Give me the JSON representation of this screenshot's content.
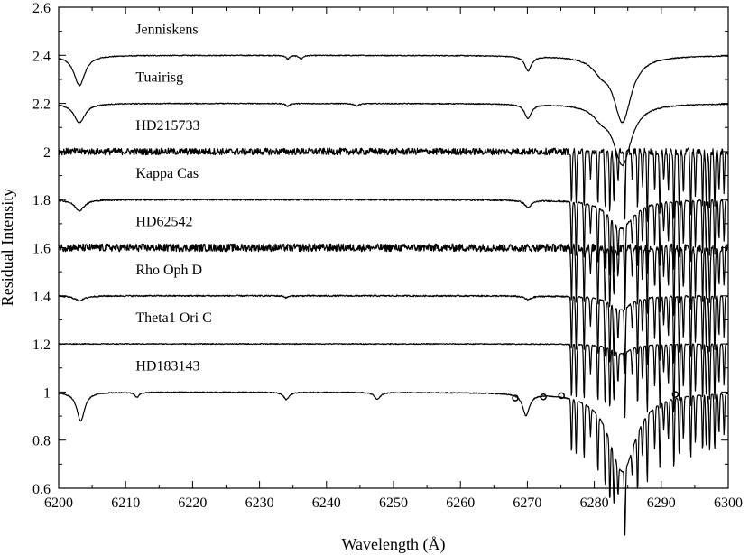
{
  "chart_data": {
    "type": "line",
    "xlabel": "Wavelength (Å)",
    "ylabel": "Residual Intensity",
    "xlim": [
      6200,
      6300
    ],
    "ylim": [
      0.6,
      2.6
    ],
    "xticks": [
      6200,
      6210,
      6220,
      6230,
      6240,
      6250,
      6260,
      6270,
      6280,
      6290,
      6300
    ],
    "xtick_labels": [
      "6200",
      "6210",
      "6220",
      "6230",
      "6240",
      "6250",
      "6260",
      "6270",
      "6280",
      "6290",
      "6300"
    ],
    "yticks": [
      0.6,
      0.8,
      1.0,
      1.2,
      1.4,
      1.6,
      1.8,
      2.0,
      2.2,
      2.4,
      2.6
    ],
    "ytick_labels": [
      "0.6",
      "0.8",
      "1",
      "1.2",
      "1.4",
      "1.6",
      "1.8",
      "2",
      "2.2",
      "2.4",
      "2.6"
    ],
    "grid": false,
    "legend": "none",
    "series": [
      {
        "name": "Jenniskens",
        "continuum": 2.4,
        "noise": 0.002,
        "telluric": false,
        "label_y": 2.49,
        "dips": [
          [
            6203.1,
            0.125,
            1.0
          ],
          [
            6234.2,
            0.015,
            0.3
          ],
          [
            6236.2,
            0.015,
            0.3
          ],
          [
            6270.1,
            0.06,
            0.6
          ],
          [
            6281.0,
            0.045,
            1.5
          ],
          [
            6284.2,
            0.27,
            1.6
          ]
        ]
      },
      {
        "name": "Tuairisg",
        "continuum": 2.2,
        "noise": 0.002,
        "telluric": false,
        "label_y": 2.29,
        "dips": [
          [
            6203.1,
            0.08,
            1.0
          ],
          [
            6234.2,
            0.012,
            0.3
          ],
          [
            6244.5,
            0.01,
            0.4
          ],
          [
            6270.1,
            0.06,
            0.6
          ],
          [
            6281.0,
            0.04,
            1.5
          ],
          [
            6284.2,
            0.25,
            1.6
          ]
        ]
      },
      {
        "name": "HD215733",
        "continuum": 2.0,
        "noise": 0.014,
        "telluric": true,
        "label_y": 2.09,
        "dips": []
      },
      {
        "name": "Kappa Cas",
        "continuum": 1.8,
        "noise": 0.003,
        "telluric": true,
        "label_y": 1.89,
        "dips": [
          [
            6203.1,
            0.045,
            0.9
          ],
          [
            6270.1,
            0.03,
            0.6
          ],
          [
            6284.0,
            0.12,
            2.2
          ]
        ]
      },
      {
        "name": "HD62542",
        "continuum": 1.6,
        "noise": 0.016,
        "telluric": true,
        "label_y": 1.69,
        "dips": []
      },
      {
        "name": "Rho Oph D",
        "continuum": 1.4,
        "noise": 0.003,
        "telluric": true,
        "label_y": 1.49,
        "dips": [
          [
            6203.1,
            0.02,
            0.9
          ],
          [
            6234.0,
            0.008,
            0.3
          ],
          [
            6270.1,
            0.015,
            0.6
          ],
          [
            6283.9,
            0.06,
            1.8
          ]
        ]
      },
      {
        "name": "Theta1 Ori C",
        "continuum": 1.2,
        "noise": 0.002,
        "telluric": true,
        "label_y": 1.29,
        "dips": [
          [
            6284.0,
            0.04,
            1.8
          ]
        ]
      },
      {
        "name": "HD183143",
        "continuum": 1.0,
        "noise": 0.002,
        "telluric": true,
        "label_y": 1.09,
        "dips": [
          [
            6203.3,
            0.12,
            0.7
          ],
          [
            6211.7,
            0.02,
            0.4
          ],
          [
            6234.0,
            0.03,
            0.5
          ],
          [
            6247.6,
            0.03,
            0.5
          ],
          [
            6269.8,
            0.09,
            0.6
          ],
          [
            6284.2,
            0.33,
            2.4
          ]
        ]
      }
    ],
    "markers": [
      [
        6268.2,
        0.975
      ],
      [
        6272.4,
        0.98
      ],
      [
        6275.1,
        0.985
      ],
      [
        6292.1,
        0.99
      ]
    ]
  }
}
